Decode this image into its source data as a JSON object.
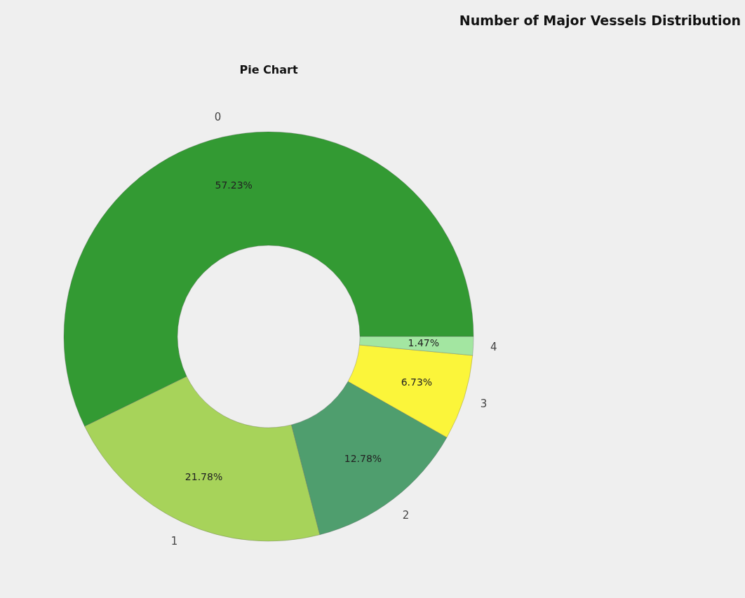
{
  "chart_data": {
    "type": "donut",
    "title": "Number of Major Vessels Distribution",
    "subtitle": "Pie Chart",
    "categories": [
      "0",
      "1",
      "2",
      "3",
      "4"
    ],
    "values": [
      57.23,
      21.78,
      12.78,
      6.73,
      1.47
    ],
    "value_labels": [
      "57.23%",
      "21.78%",
      "12.78%",
      "6.73%",
      "1.47%"
    ],
    "colors": [
      "#339a33",
      "#a7d35a",
      "#4f9e6e",
      "#fbf53a",
      "#a3e6a1"
    ]
  }
}
